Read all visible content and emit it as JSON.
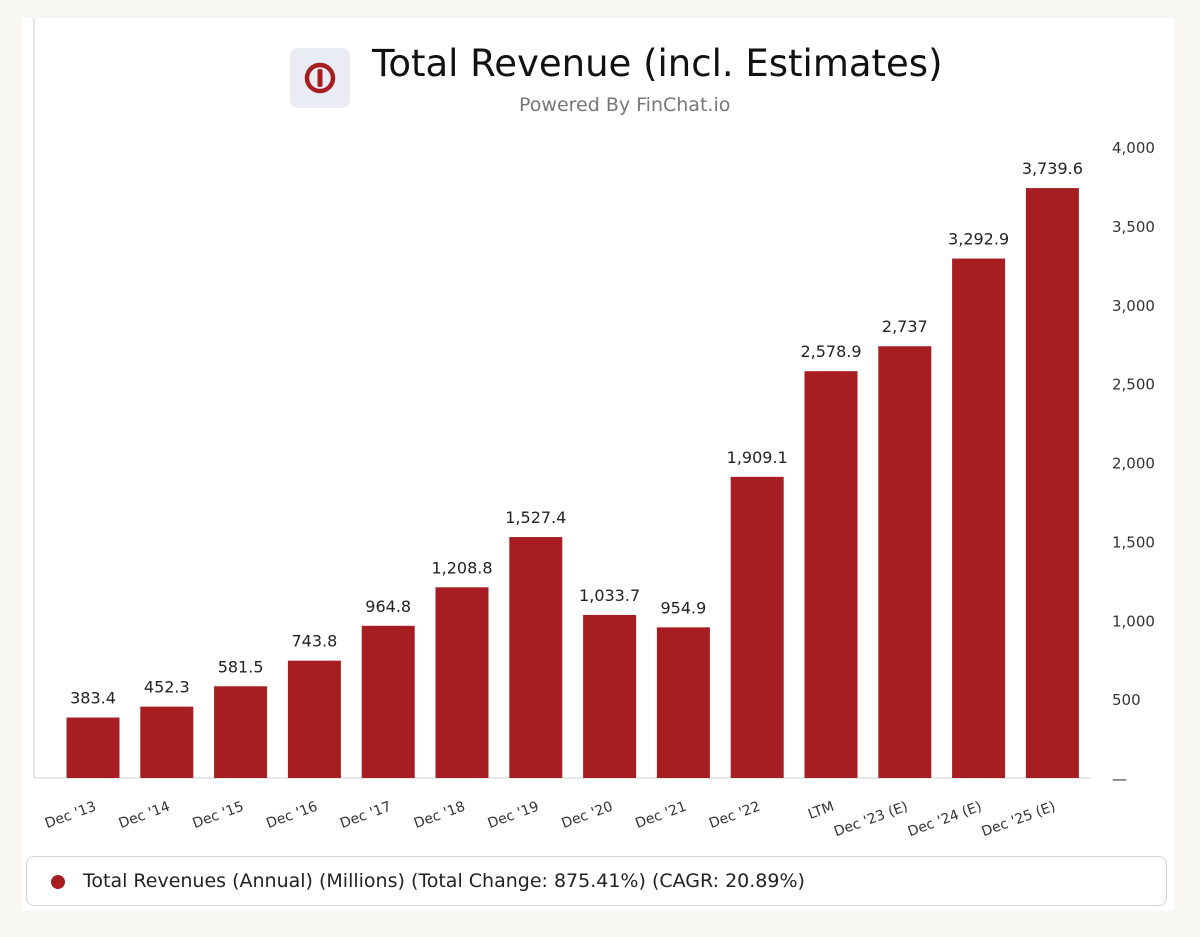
{
  "header": {
    "title": "Total Revenue (incl. Estimates)",
    "subtitle": "Powered By FinChat.io",
    "logo_icon": "finchat-power-logo-icon"
  },
  "legend": {
    "label": "Total Revenues (Annual) (Millions) (Total Change: 875.41%) (CAGR: 20.89%)",
    "color": "#a61e22"
  },
  "colors": {
    "bar": "#a61e22",
    "axis": "#999999",
    "background": "#ffffff"
  },
  "chart_data": {
    "type": "bar",
    "title": "Total Revenue (incl. Estimates)",
    "categories": [
      "Dec '13",
      "Dec '14",
      "Dec '15",
      "Dec '16",
      "Dec '17",
      "Dec '18",
      "Dec '19",
      "Dec '20",
      "Dec '21",
      "Dec '22",
      "LTM",
      "Dec '23 (E)",
      "Dec '24 (E)",
      "Dec '25 (E)"
    ],
    "values": [
      383.4,
      452.3,
      581.5,
      743.8,
      964.8,
      1208.8,
      1527.4,
      1033.7,
      954.9,
      1909.1,
      2578.9,
      2737,
      3292.9,
      3739.6
    ],
    "value_labels": [
      "383.4",
      "452.3",
      "581.5",
      "743.8",
      "964.8",
      "1,208.8",
      "1,527.4",
      "1,033.7",
      "954.9",
      "1,909.1",
      "2,578.9",
      "2,737",
      "3,292.9",
      "3,739.6"
    ],
    "series": [
      {
        "name": "Total Revenues (Annual) (Millions)"
      }
    ],
    "ylim": [
      0,
      4000
    ],
    "yticks": [
      0,
      500,
      1000,
      1500,
      2000,
      2500,
      3000,
      3500,
      4000
    ],
    "ytick_labels": [
      "—",
      "500",
      "1,000",
      "1,500",
      "2,000",
      "2,500",
      "3,000",
      "3,500",
      "4,000"
    ],
    "y_axis_side": "right",
    "grid": false,
    "legend_position": "bottom"
  }
}
